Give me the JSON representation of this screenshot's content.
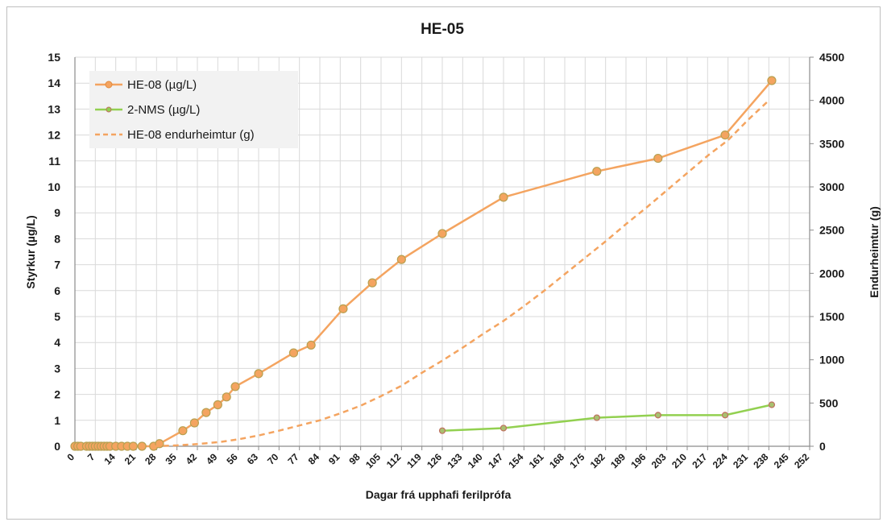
{
  "chart_data": {
    "type": "line",
    "title": "HE-05",
    "xlabel": "Dagar frá upphafi ferilprófa",
    "ylabel": "Styrkur (µg/L)",
    "y2label": "Endurheimtur (g)",
    "xlim": [
      0,
      252
    ],
    "ylim": [
      0,
      15
    ],
    "y2lim": [
      0,
      4500
    ],
    "x_ticks": [
      0,
      7,
      14,
      21,
      28,
      35,
      42,
      49,
      56,
      63,
      70,
      77,
      84,
      91,
      98,
      105,
      112,
      119,
      126,
      133,
      140,
      147,
      154,
      161,
      168,
      175,
      182,
      189,
      196,
      203,
      210,
      217,
      224,
      231,
      238,
      245,
      252
    ],
    "y_ticks": [
      0,
      1,
      2,
      3,
      4,
      5,
      6,
      7,
      8,
      9,
      10,
      11,
      12,
      13,
      14,
      15
    ],
    "y2_ticks": [
      0,
      500,
      1000,
      1500,
      2000,
      2500,
      3000,
      3500,
      4000,
      4500
    ],
    "grid": true,
    "legend_position": "top-left",
    "series": [
      {
        "name": "HE-08 (µg/L)",
        "axis": "left",
        "style": "solid-markers",
        "color": "#f4a460",
        "marker_color": "#b8a050",
        "x": [
          0,
          1,
          2,
          4,
          5,
          6,
          7,
          8,
          9,
          10,
          11,
          12,
          14,
          16,
          18,
          20,
          23,
          27,
          29,
          37,
          41,
          45,
          49,
          52,
          55,
          63,
          75,
          81,
          92,
          102,
          112,
          126,
          147,
          179,
          200,
          223,
          239
        ],
        "y": [
          0,
          0,
          0,
          0,
          0,
          0,
          0,
          0,
          0,
          0,
          0,
          0,
          0,
          0,
          0,
          0,
          0,
          0,
          0.1,
          0.6,
          0.9,
          1.3,
          1.6,
          1.9,
          2.3,
          2.8,
          3.6,
          3.9,
          5.3,
          6.3,
          7.2,
          8.2,
          9.6,
          10.6,
          11.1,
          12.0,
          14.1
        ]
      },
      {
        "name": "2-NMS (µg/L)",
        "axis": "left",
        "style": "solid-markers",
        "color": "#92d050",
        "marker_color": "#c07060",
        "x": [
          126,
          147,
          179,
          200,
          223,
          239
        ],
        "y": [
          0.6,
          0.7,
          1.1,
          1.2,
          1.2,
          1.6
        ]
      },
      {
        "name": "HE-08 endurheimtur (g)",
        "axis": "right",
        "style": "dashed",
        "color": "#f4a460",
        "x": [
          27,
          35,
          42,
          50,
          56,
          63,
          70,
          77,
          84,
          91,
          98,
          105,
          112,
          119,
          126,
          133,
          140,
          147,
          154,
          161,
          168,
          175,
          182,
          189,
          196,
          203,
          210,
          217,
          224,
          231,
          238
        ],
        "y": [
          0,
          10,
          25,
          50,
          80,
          125,
          180,
          240,
          300,
          380,
          470,
          580,
          700,
          850,
          990,
          1140,
          1300,
          1450,
          1620,
          1800,
          1990,
          2180,
          2370,
          2570,
          2760,
          2960,
          3160,
          3360,
          3540,
          3780,
          4000
        ]
      }
    ]
  }
}
